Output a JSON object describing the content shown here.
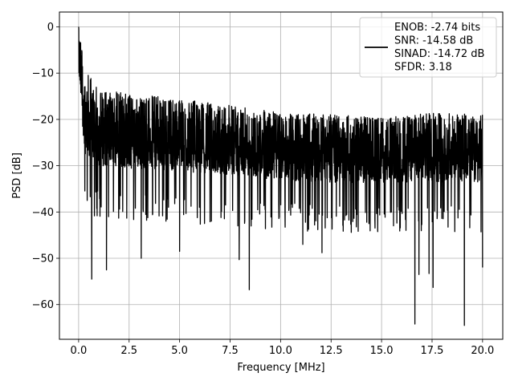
{
  "chart_data": {
    "type": "line",
    "title": "",
    "xlabel": "Frequency [MHz]",
    "ylabel": "PSD [dB]",
    "xlim": [
      -0.95,
      21.0
    ],
    "ylim": [
      -67.5,
      3.2
    ],
    "xticks": [
      0.0,
      2.5,
      5.0,
      7.5,
      10.0,
      12.5,
      15.0,
      17.5,
      20.0
    ],
    "xtick_labels": [
      "0.0",
      "2.5",
      "5.0",
      "7.5",
      "10.0",
      "12.5",
      "15.0",
      "17.5",
      "20.0"
    ],
    "yticks": [
      0,
      -10,
      -20,
      -30,
      -40,
      -50,
      -60
    ],
    "ytick_labels": [
      "0",
      "−10",
      "−20",
      "−30",
      "−40",
      "−50",
      "−60"
    ],
    "grid": true,
    "legend_position": "top-right",
    "line_color": "#000000",
    "series": [
      {
        "legend_lines": [
          "ENOB: -2.74 bits",
          "SNR: -14.58 dB",
          "SINAD: -14.72 dB",
          "SFDR: 3.18"
        ],
        "x_range": [
          0.0,
          20.0
        ],
        "envelope": {
          "x": [
            0.0,
            0.3,
            1.0,
            2.5,
            5.0,
            7.5,
            10.0,
            12.5,
            15.0,
            17.5,
            20.0
          ],
          "upper": [
            0.0,
            -9.0,
            -13.5,
            -14.5,
            -15.5,
            -17.0,
            -18.5,
            -19.0,
            -19.5,
            -18.5,
            -19.0
          ],
          "lower": [
            -14.0,
            -33.5,
            -35.5,
            -36.0,
            -36.5,
            -37.0,
            -38.0,
            -38.5,
            -38.5,
            -38.5,
            -38.5
          ]
        },
        "notable_points": [
          {
            "x": 0.0,
            "y": 0.0
          },
          {
            "x": 0.65,
            "y": -54.5
          },
          {
            "x": 1.38,
            "y": -52.5
          },
          {
            "x": 3.1,
            "y": -50.0
          },
          {
            "x": 5.0,
            "y": -48.5
          },
          {
            "x": 7.95,
            "y": -50.3
          },
          {
            "x": 8.45,
            "y": -56.8
          },
          {
            "x": 11.1,
            "y": -47.0
          },
          {
            "x": 12.05,
            "y": -48.8
          },
          {
            "x": 16.65,
            "y": -64.2
          },
          {
            "x": 16.85,
            "y": -53.5
          },
          {
            "x": 17.35,
            "y": -53.3
          },
          {
            "x": 17.55,
            "y": -56.3
          },
          {
            "x": 19.1,
            "y": -64.5
          },
          {
            "x": 20.0,
            "y": -52.0
          }
        ]
      }
    ]
  }
}
